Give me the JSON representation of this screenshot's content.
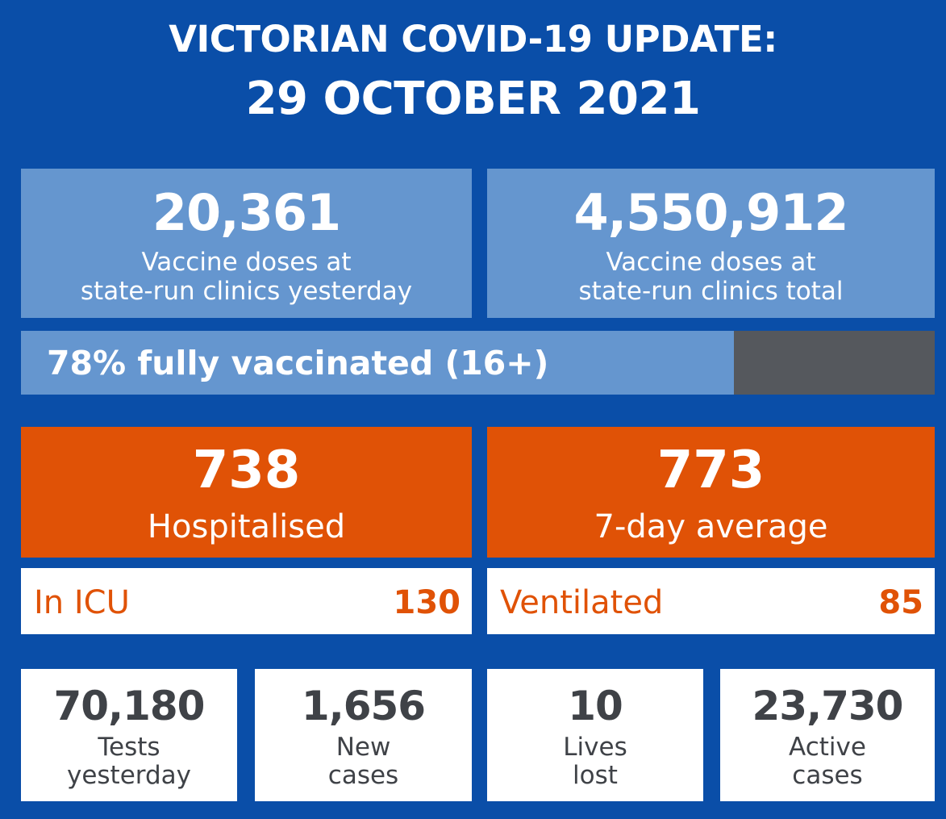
{
  "header": {
    "line1": "VICTORIAN COVID-19 UPDATE:",
    "line2": "29 OCTOBER 2021"
  },
  "vaccines": {
    "yesterday": {
      "value": "20,361",
      "label_line1": "Vaccine doses at",
      "label_line2": "state-run clinics yesterday"
    },
    "total": {
      "value": "4,550,912",
      "label_line1": "Vaccine doses at",
      "label_line2": "state-run clinics total"
    }
  },
  "progress": {
    "label": "78% fully vaccinated (16+)",
    "fraction": 0.78
  },
  "hospital": {
    "hospitalised": {
      "value": "738",
      "label": "Hospitalised"
    },
    "average": {
      "value": "773",
      "label": "7-day average"
    },
    "icu": {
      "label": "In ICU",
      "value": "130"
    },
    "ventilated": {
      "label": "Ventilated",
      "value": "85"
    }
  },
  "stats": [
    {
      "value": "70,180",
      "line1": "Tests",
      "line2": "yesterday"
    },
    {
      "value": "1,656",
      "line1": "New",
      "line2": "cases"
    },
    {
      "value": "10",
      "line1": "Lives",
      "line2": "lost"
    },
    {
      "value": "23,730",
      "line1": "Active",
      "line2": "cases"
    }
  ],
  "colors": {
    "background": "#0a4ea8",
    "light_blue": "#6596cf",
    "orange": "#e05206",
    "grey": "#55585d",
    "dark_text": "#3f4247"
  }
}
